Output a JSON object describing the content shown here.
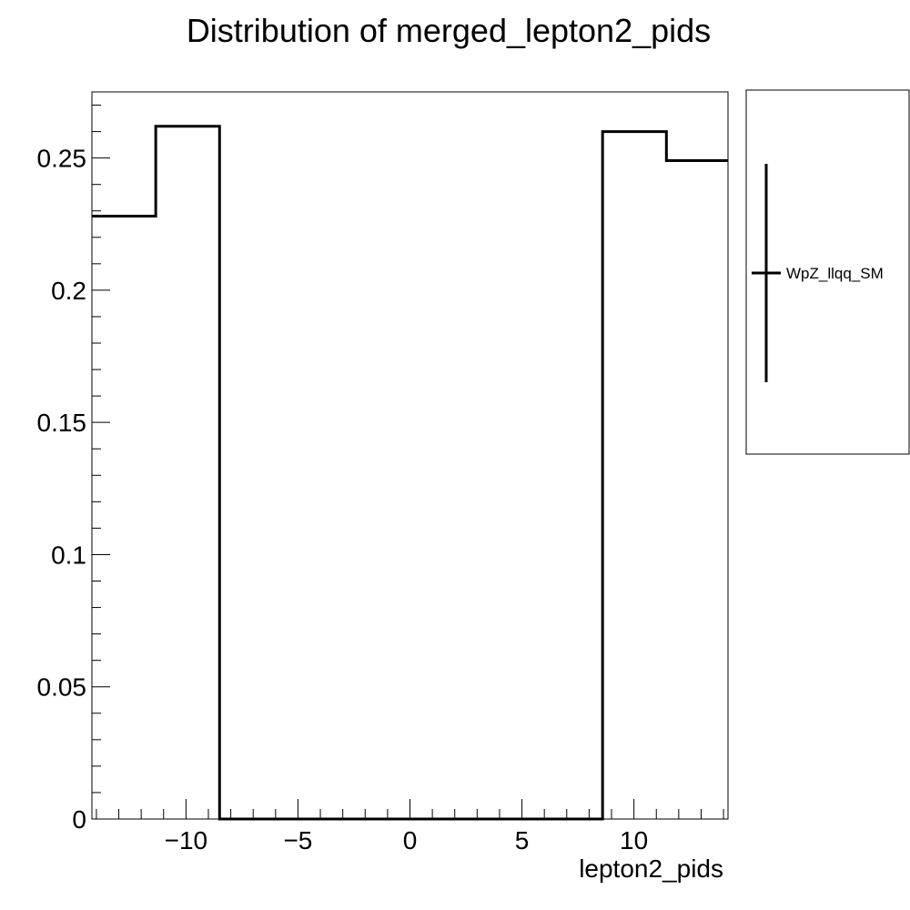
{
  "chart_data": {
    "type": "histogram",
    "title": "Distribution of merged_lepton2_pids",
    "xlabel": "lepton2_pids",
    "ylabel": "",
    "xlim": [
      -14.2,
      14.2
    ],
    "ylim": [
      0,
      0.275
    ],
    "bin_edges": [
      -14.2,
      -11.35,
      -8.5,
      8.6,
      11.45,
      14.2
    ],
    "values": [
      0.228,
      0.262,
      0.0,
      0.26,
      0.249
    ],
    "x_ticks": [
      {
        "value": -10,
        "label": "−10"
      },
      {
        "value": -5,
        "label": "−5"
      },
      {
        "value": 0,
        "label": "0"
      },
      {
        "value": 5,
        "label": "5"
      },
      {
        "value": 10,
        "label": "10"
      }
    ],
    "y_ticks": [
      {
        "value": 0,
        "label": "0"
      },
      {
        "value": 0.05,
        "label": "0.05"
      },
      {
        "value": 0.1,
        "label": "0.1"
      },
      {
        "value": 0.15,
        "label": "0.15"
      },
      {
        "value": 0.2,
        "label": "0.2"
      },
      {
        "value": 0.25,
        "label": "0.25"
      }
    ],
    "grid": false,
    "legend_position": "right",
    "series": [
      {
        "name": "WpZ_llqq_SM",
        "color": "#000000"
      }
    ]
  }
}
